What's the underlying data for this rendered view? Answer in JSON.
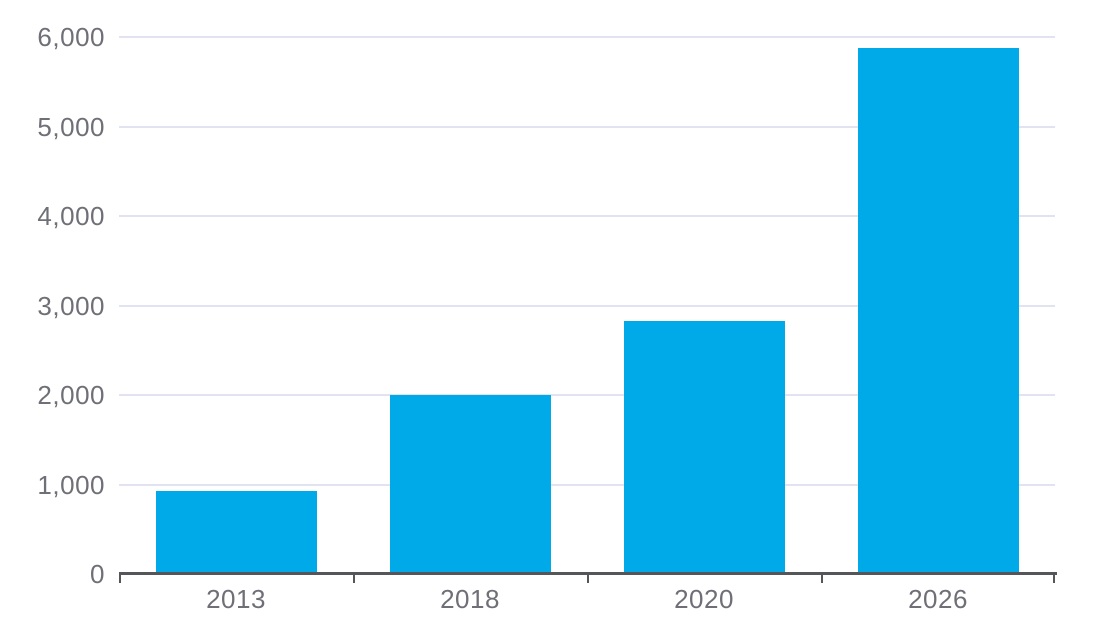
{
  "chart_data": {
    "type": "bar",
    "title": "",
    "xlabel": "",
    "ylabel": "",
    "categories": [
      "2013",
      "2018",
      "2020",
      "2026"
    ],
    "values": [
      930,
      2000,
      2825,
      5880
    ],
    "ylim": [
      0,
      6000
    ],
    "yticks": [
      0,
      1000,
      2000,
      3000,
      4000,
      5000,
      6000
    ],
    "ytick_labels": [
      "0",
      "1,000",
      "2,000",
      "3,000",
      "4,000",
      "5,000",
      "6,000"
    ],
    "grid": true,
    "legend": false,
    "colors": {
      "bar": "#00A9E8",
      "gridline": "#E1E4F0",
      "axis": "#55565A",
      "label": "#6F7077"
    }
  }
}
